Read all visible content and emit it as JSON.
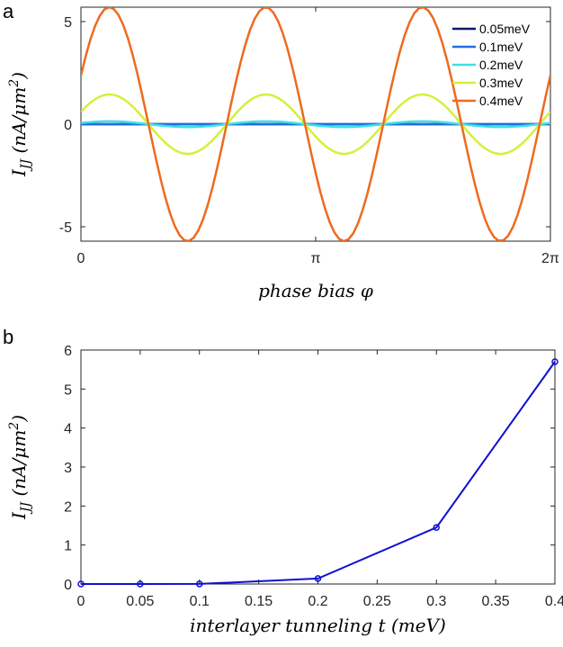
{
  "chart_data": [
    {
      "panel_label": "a",
      "type": "line",
      "xlabel": "phase bias φ",
      "ylabel": "I_JJ (nA/μm²)",
      "ylabel_main": "I",
      "ylabel_sub": "JJ",
      "ylabel_rest": " (nA/μm",
      "ylabel_sup": "2",
      "ylabel_close": ")",
      "xlim": [
        0,
        6.2832
      ],
      "ylim": [
        -5.7,
        5.7
      ],
      "x_ticks": [
        0,
        3.1416,
        6.2832
      ],
      "x_ticklabels": [
        "0",
        "π",
        "2π"
      ],
      "y_ticks": [
        -5,
        0,
        5
      ],
      "y_ticklabels": [
        "-5",
        "0",
        "5"
      ],
      "grid": false,
      "legend_position": "top-right",
      "series": [
        {
          "name": "0.05meV",
          "color": "#0a1a6e",
          "amplitude": 0.0001,
          "phase": 0.43
        },
        {
          "name": "0.1meV",
          "color": "#1f6fe0",
          "amplitude": 0.002,
          "phase": 0.43
        },
        {
          "name": "0.2meV",
          "color": "#3fe0e6",
          "amplitude": 0.14,
          "phase": 0.43
        },
        {
          "name": "0.3meV",
          "color": "#d7ef3a",
          "amplitude": 1.45,
          "phase": 0.43
        },
        {
          "name": "0.4meV",
          "color": "#ee6a1f",
          "amplitude": 5.7,
          "phase": 0.43
        }
      ],
      "frequency": 3
    },
    {
      "panel_label": "b",
      "type": "line",
      "xlabel": "interlayer tunneling t (meV)",
      "ylabel": "I_JJ (nA/μm²)",
      "ylabel_main": "I",
      "ylabel_sub": "JJ",
      "ylabel_rest": " (nA/μm",
      "ylabel_sup": "2",
      "ylabel_close": ")",
      "xlim": [
        0,
        0.4
      ],
      "ylim": [
        0,
        6
      ],
      "x_ticks": [
        0,
        0.05,
        0.1,
        0.15,
        0.2,
        0.25,
        0.3,
        0.35,
        0.4
      ],
      "x_ticklabels": [
        "0",
        "0.05",
        "0.1",
        "0.15",
        "0.2",
        "0.25",
        "0.3",
        "0.35",
        "0.4"
      ],
      "y_ticks": [
        0,
        1,
        2,
        3,
        4,
        5,
        6
      ],
      "y_ticklabels": [
        "0",
        "1",
        "2",
        "3",
        "4",
        "5",
        "6"
      ],
      "grid": false,
      "series": [
        {
          "color": "#1010d0",
          "marker": "circle",
          "x": [
            0,
            0.05,
            0.1,
            0.2,
            0.3,
            0.4
          ],
          "y": [
            0,
            0.0001,
            0.002,
            0.14,
            1.45,
            5.7
          ]
        }
      ]
    }
  ]
}
